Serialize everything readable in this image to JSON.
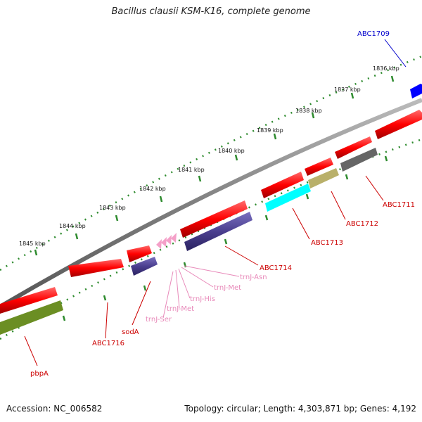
{
  "title": "Bacillus clausii KSM-K16, complete genome",
  "footer": {
    "accession": "Accession: NC_006582",
    "summary": "Topology: circular; Length: 4,303,871 bp; Genes: 4,192"
  },
  "kbp_labels": [
    "1836 kbp",
    "1837 kbp",
    "1838 kbp",
    "1839 kbp",
    "1840 kbp",
    "1841 kbp",
    "1842 kbp",
    "1843 kbp",
    "1844 kbp",
    "1845 kbp"
  ],
  "gene_labels": {
    "abc1709": "ABC1709",
    "abc1711": "ABC1711",
    "abc1712": "ABC1712",
    "abc1713": "ABC1713",
    "abc1714": "ABC1714",
    "abc1716": "ABC1716",
    "soda": "sodA",
    "pbpa": "pbpA",
    "trnj_asn": "trnJ-Asn",
    "trnj_met1": "trnJ-Met",
    "trnj_his": "trnJ-His",
    "trnj_met2": "trnJ-Met",
    "trnj_ser": "trnJ-Ser"
  },
  "colors": {
    "forward_gene": "#ff0000",
    "reverse_gene": "#4b3f8f",
    "blue_gene": "#0000ff",
    "cyan_gene": "#00ffff",
    "olive_gene": "#b9b06a",
    "gray_gene": "#666666",
    "green_gene": "#6b8e23",
    "trna": "#f4a0c8",
    "label_red": "#cc0000",
    "label_blue": "#0000cc",
    "label_pink": "#e88aba",
    "backbone": "#808080",
    "ticks": "#2e8b2e"
  }
}
